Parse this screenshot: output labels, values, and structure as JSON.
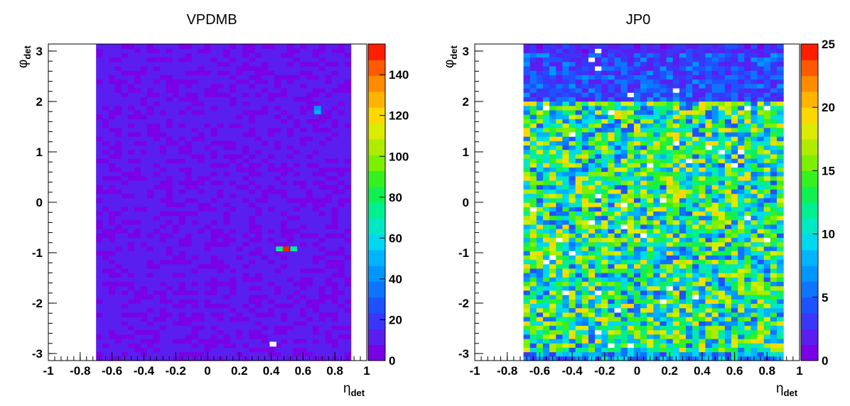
{
  "chart_data": [
    {
      "type": "heatmap",
      "title": "VPDMB",
      "xlabel": "η",
      "xlabel_sub": "det",
      "ylabel": "φ",
      "ylabel_sub": "det",
      "xlim": [
        -1,
        1
      ],
      "ylim": [
        -3.14,
        3.14
      ],
      "data_x_range": [
        -0.7,
        0.9
      ],
      "x_ticks": [
        -1,
        -0.8,
        -0.6,
        -0.4,
        -0.2,
        0,
        0.2,
        0.4,
        0.6,
        0.8,
        1
      ],
      "y_ticks": [
        -3,
        -2,
        -1,
        0,
        1,
        2,
        3
      ],
      "z_range": [
        0,
        155
      ],
      "z_ticks": [
        0,
        20,
        40,
        60,
        80,
        100,
        120,
        140
      ],
      "typical_value": 10,
      "hot_spots": [
        {
          "eta": 0.49,
          "phi": -0.92,
          "value": 150
        },
        {
          "eta": 0.45,
          "phi": -0.92,
          "value": 70
        },
        {
          "eta": 0.54,
          "phi": -0.92,
          "value": 70
        },
        {
          "eta": 0.69,
          "phi": 1.8,
          "value": 48
        },
        {
          "eta": 0.69,
          "phi": 1.87,
          "value": 45
        }
      ],
      "empty_cells": [
        {
          "eta": 0.41,
          "phi": -2.81
        }
      ]
    },
    {
      "type": "heatmap",
      "title": "JP0",
      "xlabel": "η",
      "xlabel_sub": "det",
      "ylabel": "φ",
      "ylabel_sub": "det",
      "xlim": [
        -1,
        1
      ],
      "ylim": [
        -3.14,
        3.14
      ],
      "data_x_range": [
        -0.7,
        0.9
      ],
      "x_ticks": [
        -1,
        -0.8,
        -0.6,
        -0.4,
        -0.2,
        0,
        0.2,
        0.4,
        0.6,
        0.8,
        1
      ],
      "y_ticks": [
        -3,
        -2,
        -1,
        0,
        1,
        2,
        3
      ],
      "z_range": [
        0,
        25
      ],
      "z_ticks": [
        0,
        5,
        10,
        15,
        20,
        25
      ],
      "typical_value": 12,
      "low_band_phi": [
        2.0,
        3.1
      ],
      "low_band_value": 4
    }
  ]
}
